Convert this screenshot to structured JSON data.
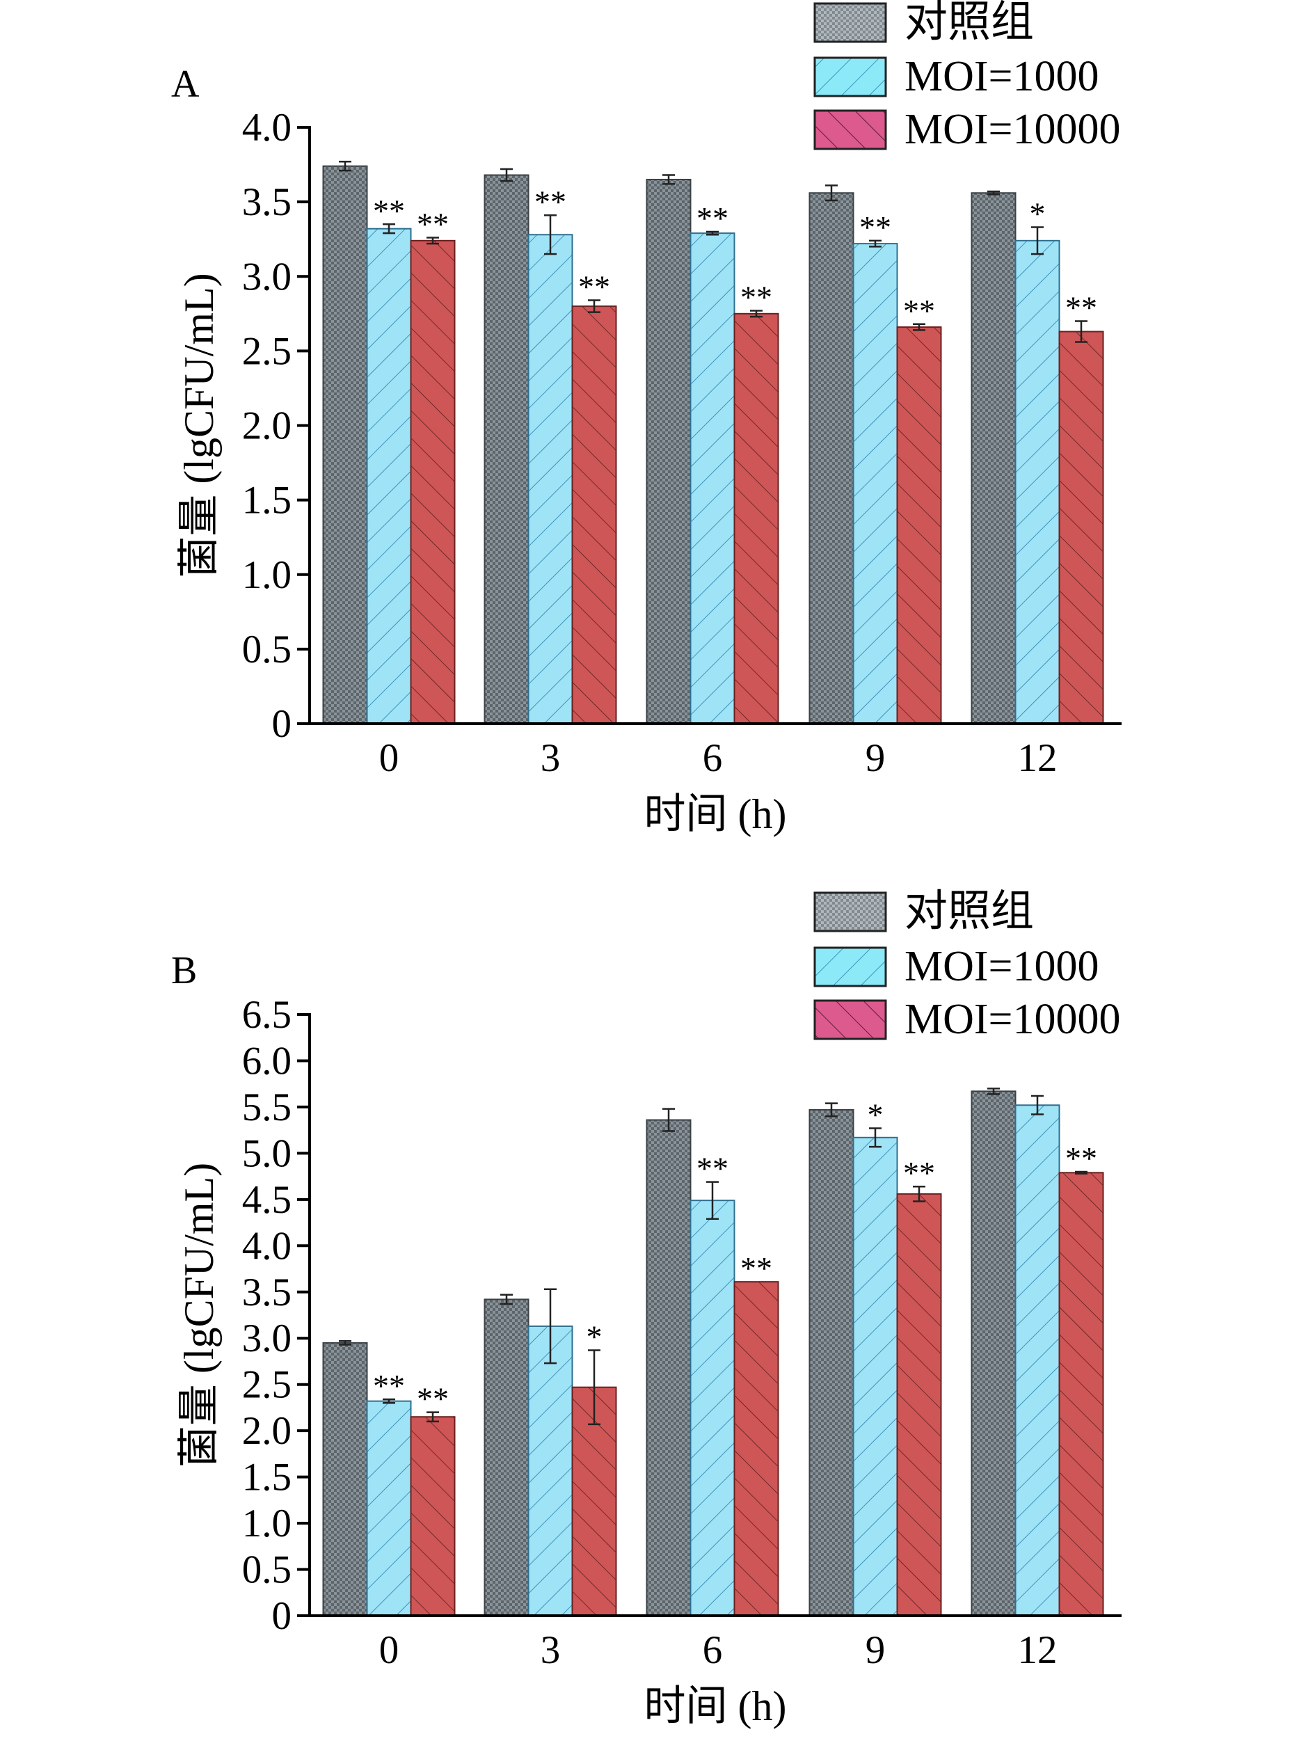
{
  "colors": {
    "control": "#5c656b",
    "moi1000": "#9fe3f7",
    "moi10000": "#cf5656",
    "legend_moi1000": "#8ceaf8",
    "legend_moi10000": "#dc5a8e"
  },
  "chart_data": [
    {
      "type": "bar",
      "panel_label": "A",
      "xlabel": "时间 (h)",
      "ylabel": "菌量 (lgCFU/mL)",
      "ylim": [
        0,
        4.0
      ],
      "yticks": [
        "0",
        "0.5",
        "1.0",
        "1.5",
        "2.0",
        "2.5",
        "3.0",
        "3.5",
        "4.0"
      ],
      "categories": [
        "0",
        "3",
        "6",
        "9",
        "12"
      ],
      "legend_position": "top-right",
      "series": [
        {
          "name": "对照组",
          "values": [
            3.74,
            3.68,
            3.65,
            3.56,
            3.56
          ],
          "errors": [
            0.03,
            0.04,
            0.03,
            0.05,
            0.01
          ],
          "significance": [
            "",
            "",
            "",
            "",
            ""
          ]
        },
        {
          "name": "MOI=1000",
          "values": [
            3.32,
            3.28,
            3.29,
            3.22,
            3.24
          ],
          "errors": [
            0.03,
            0.13,
            0.01,
            0.02,
            0.09
          ],
          "significance": [
            "**",
            "**",
            "**",
            "**",
            "*"
          ]
        },
        {
          "name": "MOI=10000",
          "values": [
            3.24,
            2.8,
            2.75,
            2.66,
            2.63
          ],
          "errors": [
            0.02,
            0.04,
            0.02,
            0.02,
            0.07
          ],
          "significance": [
            "**",
            "**",
            "**",
            "**",
            "**"
          ]
        }
      ]
    },
    {
      "type": "bar",
      "panel_label": "B",
      "xlabel": "时间 (h)",
      "ylabel": "菌量 (lgCFU/mL)",
      "ylim": [
        0,
        6.5
      ],
      "yticks": [
        "0",
        "0.5",
        "1.0",
        "1.5",
        "2.0",
        "2.5",
        "3.0",
        "3.5",
        "4.0",
        "4.5",
        "5.0",
        "5.5",
        "6.0",
        "6.5"
      ],
      "categories": [
        "0",
        "3",
        "6",
        "9",
        "12"
      ],
      "legend_position": "top-right",
      "series": [
        {
          "name": "对照组",
          "values": [
            2.95,
            3.42,
            5.36,
            5.47,
            5.67
          ],
          "errors": [
            0.02,
            0.05,
            0.12,
            0.07,
            0.03
          ],
          "significance": [
            "",
            "",
            "",
            "",
            ""
          ]
        },
        {
          "name": "MOI=1000",
          "values": [
            2.32,
            3.13,
            4.49,
            5.17,
            5.52
          ],
          "errors": [
            0.02,
            0.4,
            0.2,
            0.1,
            0.1
          ],
          "significance": [
            "**",
            "",
            "**",
            "*",
            ""
          ]
        },
        {
          "name": "MOI=10000",
          "values": [
            2.15,
            2.47,
            3.61,
            4.56,
            4.79
          ],
          "errors": [
            0.05,
            0.4,
            0.0,
            0.08,
            0.01
          ],
          "significance": [
            "**",
            "*",
            "**",
            "**",
            "**"
          ]
        }
      ]
    }
  ]
}
